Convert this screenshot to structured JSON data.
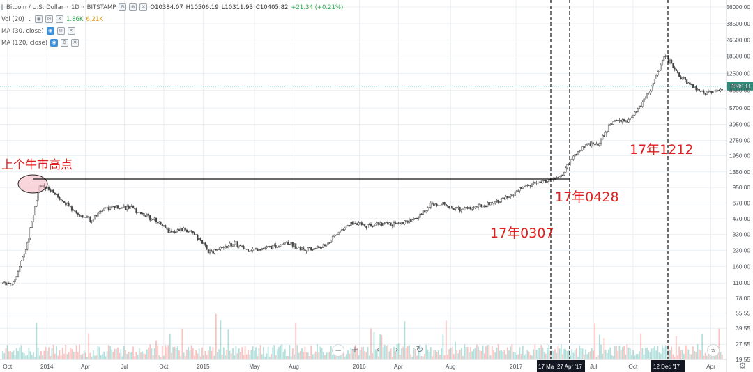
{
  "header": {
    "symbol": "Bitcoin / U.S. Dollar",
    "interval": "1D",
    "exchange": "BITSTAMP",
    "open": "O10384.07",
    "high": "H10506.19",
    "low": "L10311.93",
    "close": "C10405.82",
    "change": "+21.34 (+0.21%)"
  },
  "indicators": {
    "vol_label": "Vol (20)",
    "vol_value1": "1.86K",
    "vol_value2": "6.21K",
    "ma30_label": "MA (30, close)",
    "ma120_label": "MA (120, close)"
  },
  "price_scale": {
    "ticks": [
      "56000.00",
      "38500.00",
      "26500.00",
      "18500.00",
      "12500.00",
      "9345.11",
      "8550.00",
      "5700.00",
      "3950.00",
      "2750.00",
      "1950.00",
      "1350.00",
      "950.00",
      "670.00",
      "470.00",
      "330.00",
      "230.00",
      "160.00",
      "110.00",
      "78.00",
      "55.55",
      "39.55",
      "27.55",
      "19.55"
    ],
    "current_price": "9345.11"
  },
  "time_scale": {
    "ticks": [
      "Oct",
      "2014",
      "Apr",
      "Jul",
      "Oct",
      "2015",
      "May",
      "Aug",
      "2016",
      "Apr",
      "Aug",
      "2017",
      "Jul",
      "Oct",
      "Apr"
    ],
    "markers": [
      "17 Ma",
      "27 Apr '17",
      "12 Dec '17"
    ]
  },
  "annotations": {
    "prev_bull_high": "上个牛市高点",
    "date_0307": "17年0307",
    "date_0428": "17年0428",
    "date_1212": "17年1212"
  },
  "controls": {
    "zoom_out": "−",
    "zoom_in": "+",
    "scroll_left": "‹",
    "scroll_right": "›",
    "reset": "↻",
    "go_latest": "»"
  },
  "colors": {
    "up": "#26a69a",
    "down": "#ef5350",
    "candle": "#444444",
    "annotation_red": "#e02020",
    "price_line": "#26a69a",
    "price_label_bg": "#2e8b7a"
  },
  "chart_data": {
    "type": "line",
    "title": "Bitcoin / U.S. Dollar",
    "xlabel": "",
    "ylabel": "",
    "y_scale": "log",
    "ylim": [
      19.55,
      56000
    ],
    "grid": true,
    "x": [
      "2013-10",
      "2013-11",
      "2013-12",
      "2014-01",
      "2014-02",
      "2014-03",
      "2014-04",
      "2014-05",
      "2014-06",
      "2014-07",
      "2014-08",
      "2014-09",
      "2014-10",
      "2014-11",
      "2014-12",
      "2015-01",
      "2015-02",
      "2015-03",
      "2015-04",
      "2015-05",
      "2015-06",
      "2015-07",
      "2015-08",
      "2015-09",
      "2015-10",
      "2015-11",
      "2015-12",
      "2016-01",
      "2016-02",
      "2016-03",
      "2016-04",
      "2016-05",
      "2016-06",
      "2016-07",
      "2016-08",
      "2016-09",
      "2016-10",
      "2016-11",
      "2016-12",
      "2017-01",
      "2017-02",
      "2017-03",
      "2017-04",
      "2017-05",
      "2017-06",
      "2017-07",
      "2017-08",
      "2017-09",
      "2017-10",
      "2017-11",
      "2017-12",
      "2018-01",
      "2018-02",
      "2018-03",
      "2018-04",
      "2018-05"
    ],
    "series": [
      {
        "name": "",
        "values": [
          110,
          250,
          1000,
          850,
          650,
          520,
          450,
          600,
          620,
          600,
          520,
          450,
          350,
          370,
          330,
          220,
          240,
          270,
          230,
          240,
          250,
          280,
          240,
          235,
          260,
          350,
          430,
          400,
          420,
          415,
          430,
          480,
          650,
          660,
          580,
          600,
          630,
          700,
          750,
          950,
          1050,
          1100,
          1200,
          1900,
          2500,
          2600,
          4300,
          4200,
          5700,
          9500,
          19000,
          12000,
          9500,
          8000,
          8500,
          9345
        ]
      }
    ],
    "reference_line": {
      "label": "上个牛市高点",
      "value": 1150
    },
    "vertical_markers": [
      "17 Ma",
      "27 Apr '17",
      "12 Dec '17"
    ]
  }
}
